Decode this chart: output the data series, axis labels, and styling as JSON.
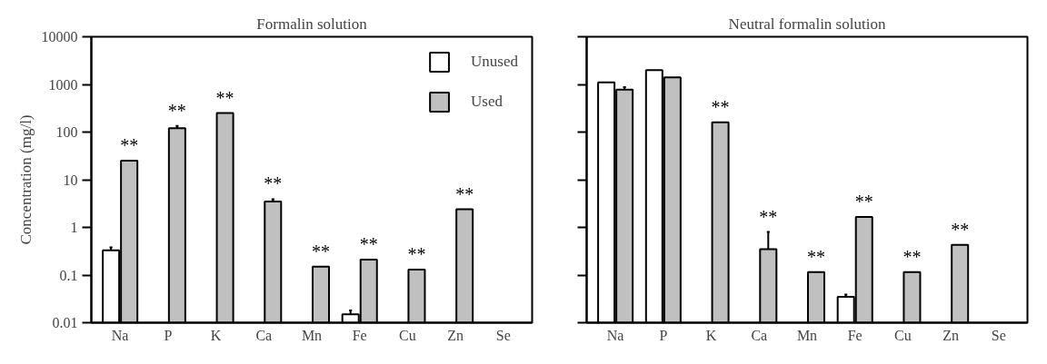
{
  "chart_data": [
    {
      "type": "bar",
      "title": "Formalin solution",
      "ylabel": "Concentration (mg/l)",
      "categories": [
        "Na",
        "P",
        "K",
        "Ca",
        "Mn",
        "Fe",
        "Cu",
        "Zn",
        "Se"
      ],
      "log": true,
      "ylim": [
        0.01,
        10000
      ],
      "yticks": [
        0.01,
        0.1,
        1,
        10,
        100,
        1000,
        10000
      ],
      "grid": false,
      "legend": "top right",
      "series": [
        {
          "name": "Unused",
          "color": "#ffffff",
          "values": [
            0.33,
            null,
            null,
            null,
            null,
            0.015,
            null,
            null,
            null
          ],
          "errors": [
            0.05,
            null,
            null,
            null,
            null,
            0.003,
            null,
            null,
            null
          ]
        },
        {
          "name": "Used",
          "color": "#c0c0c0",
          "values": [
            25,
            120,
            250,
            3.5,
            0.15,
            0.21,
            0.13,
            2.4,
            null
          ],
          "errors": [
            null,
            15,
            null,
            0.4,
            null,
            null,
            null,
            null,
            null
          ]
        }
      ],
      "annotations": [
        {
          "text": "**",
          "x": "Na",
          "y": 25
        },
        {
          "text": "**",
          "x": "P",
          "y": 120
        },
        {
          "text": "**",
          "x": "K",
          "y": 250
        },
        {
          "text": "**",
          "x": "Ca",
          "y": 3.5
        },
        {
          "text": "**",
          "x": "Mn",
          "y": 0.15
        },
        {
          "text": "**",
          "x": "Fe",
          "y": 0.21
        },
        {
          "text": "**",
          "x": "Cu",
          "y": 0.13
        },
        {
          "text": "**",
          "x": "Zn",
          "y": 2.4
        }
      ]
    },
    {
      "type": "bar",
      "title": "Neutral formalin solution",
      "categories": [
        "Na",
        "P",
        "K",
        "Ca",
        "Mn",
        "Fe",
        "Cu",
        "Zn",
        "Se"
      ],
      "log": true,
      "ylim": [
        0.01,
        10000
      ],
      "yticks": [
        0.01,
        0.1,
        1,
        10,
        100,
        1000,
        10000
      ],
      "grid": false,
      "tick_labels": "x",
      "series": [
        {
          "color": "#ffffff",
          "values": [
            1100,
            2000,
            null,
            null,
            null,
            0.035,
            null,
            null,
            null
          ],
          "errors": [
            null,
            null,
            null,
            null,
            null,
            0.004,
            null,
            null,
            null
          ]
        },
        {
          "color": "#c0c0c0",
          "values": [
            780,
            1400,
            160,
            0.35,
            0.115,
            1.65,
            0.115,
            0.43,
            null
          ],
          "errors": [
            100,
            null,
            null,
            0.45,
            null,
            null,
            null,
            null,
            null
          ]
        }
      ],
      "annotations": [
        {
          "text": "**",
          "x": "K",
          "y": 160
        },
        {
          "text": "**",
          "x": "Ca",
          "y": 0.35
        },
        {
          "text": "**",
          "x": "Mn",
          "y": 0.115
        },
        {
          "text": "**",
          "x": "Fe",
          "y": 1.65
        },
        {
          "text": "**",
          "x": "Cu",
          "y": 0.115
        },
        {
          "text": "**",
          "x": "Zn",
          "y": 0.43
        }
      ]
    }
  ]
}
